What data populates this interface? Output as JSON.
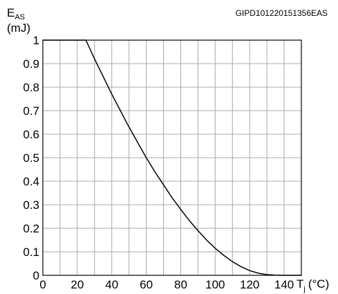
{
  "chart_data": {
    "type": "line",
    "code_label": "GIPD101220151356EAS",
    "ylabel": {
      "symbol": "E",
      "subscript": "AS",
      "unit": "(mJ)"
    },
    "xlabel": {
      "symbol": "T",
      "subscript": "j",
      "unit": "(°C)"
    },
    "xlim": [
      0,
      150
    ],
    "ylim": [
      0,
      1
    ],
    "grid": true,
    "x_ticks": [
      {
        "value": 0,
        "label": "0"
      },
      {
        "value": 20,
        "label": "20"
      },
      {
        "value": 40,
        "label": "40"
      },
      {
        "value": 60,
        "label": "60"
      },
      {
        "value": 80,
        "label": "80"
      },
      {
        "value": 100,
        "label": "100"
      },
      {
        "value": 120,
        "label": "120"
      },
      {
        "value": 140,
        "label": "140"
      }
    ],
    "y_ticks": [
      {
        "value": 0,
        "label": "0"
      },
      {
        "value": 0.1,
        "label": "0.1"
      },
      {
        "value": 0.2,
        "label": "0.2"
      },
      {
        "value": 0.3,
        "label": "0.3"
      },
      {
        "value": 0.4,
        "label": "0.4"
      },
      {
        "value": 0.5,
        "label": "0.5"
      },
      {
        "value": 0.6,
        "label": "0.6"
      },
      {
        "value": 0.7,
        "label": "0.7"
      },
      {
        "value": 0.8,
        "label": "0.8"
      },
      {
        "value": 0.9,
        "label": "0.9"
      },
      {
        "value": 1,
        "label": "1"
      }
    ],
    "series": [
      {
        "color": "#000000",
        "points": [
          [
            0,
            1.0
          ],
          [
            25,
            1.0
          ],
          [
            30,
            0.92
          ],
          [
            35,
            0.845
          ],
          [
            40,
            0.77
          ],
          [
            45,
            0.7
          ],
          [
            50,
            0.63
          ],
          [
            55,
            0.565
          ],
          [
            60,
            0.5
          ],
          [
            65,
            0.44
          ],
          [
            70,
            0.385
          ],
          [
            75,
            0.33
          ],
          [
            80,
            0.28
          ],
          [
            85,
            0.233
          ],
          [
            90,
            0.19
          ],
          [
            95,
            0.15
          ],
          [
            100,
            0.115
          ],
          [
            105,
            0.085
          ],
          [
            110,
            0.058
          ],
          [
            115,
            0.037
          ],
          [
            120,
            0.02
          ],
          [
            125,
            0.009
          ],
          [
            130,
            0.003
          ],
          [
            135,
            0.0005
          ],
          [
            140,
            0.0
          ],
          [
            150,
            0.0
          ]
        ]
      }
    ]
  }
}
